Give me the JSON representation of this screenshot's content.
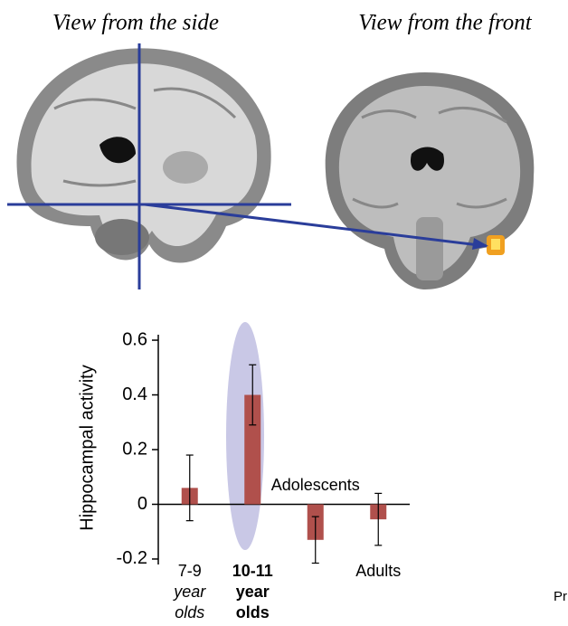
{
  "panels": {
    "side_title": "View from the side",
    "front_title": "View from the front"
  },
  "chart_data": {
    "type": "bar",
    "y_label": "Hippocampal activity",
    "categories": [
      [
        "7-9",
        "year",
        "olds"
      ],
      [
        "10-11",
        "year",
        "olds"
      ],
      [
        "Adolescents"
      ],
      [
        "Adults"
      ]
    ],
    "values": [
      0.06,
      0.4,
      -0.13,
      -0.055
    ],
    "errors": [
      0.12,
      0.11,
      0.085,
      0.095
    ],
    "color": "#b0504c",
    "ylim": [
      -0.22,
      0.62
    ],
    "yticks": [
      -0.2,
      0,
      0.2,
      0.4,
      0.6
    ]
  },
  "footer_fragment": "Pr"
}
